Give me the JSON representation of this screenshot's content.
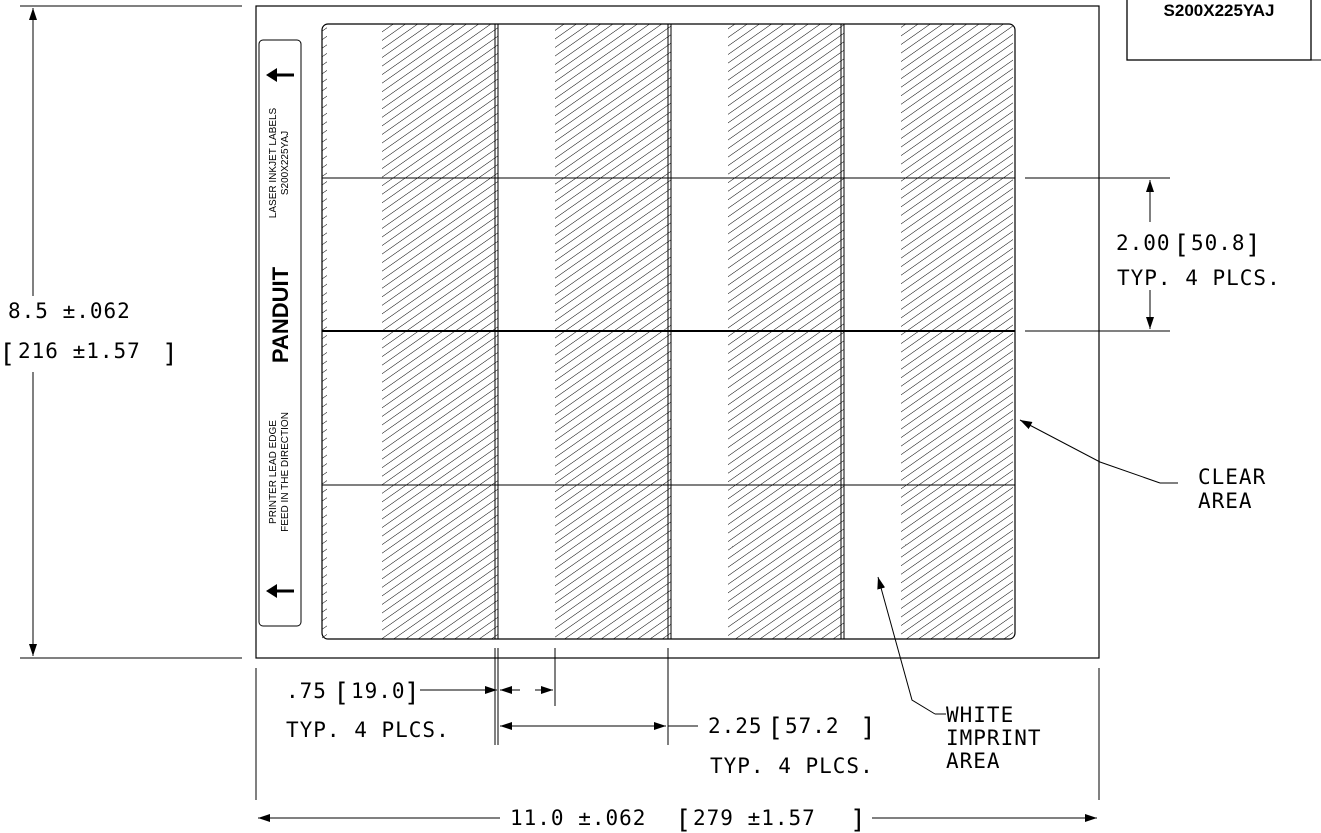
{
  "part_number_box": {
    "text": "S200X225YAJ"
  },
  "feed_strip": {
    "top_line1": "LASER INKJET LABELS",
    "top_line2": "S200X225YAJ",
    "brand": "PANDUIT",
    "bottom_line1": "PRINTER LEAD EDGE",
    "bottom_line2": "FEED IN THE DIRECTION"
  },
  "dimensions": {
    "height": {
      "value": "8.5 ±.062",
      "metric": "216 ±1.57"
    },
    "row_pitch": {
      "value": "2.00",
      "metric": "50.8",
      "note": "TYP. 4 PLCS."
    },
    "clear_width": {
      "value": ".75",
      "metric": "19.0",
      "note": "TYP. 4 PLCS."
    },
    "label_pitch": {
      "value": "2.25",
      "metric": "57.2",
      "note": "TYP. 4 PLCS."
    },
    "width": {
      "value": "11.0 ±.062",
      "metric": "279 ±1.57"
    }
  },
  "callouts": {
    "clear_area": [
      "CLEAR",
      "AREA"
    ],
    "white_area": [
      "WHITE",
      "IMPRINT",
      "AREA"
    ]
  }
}
